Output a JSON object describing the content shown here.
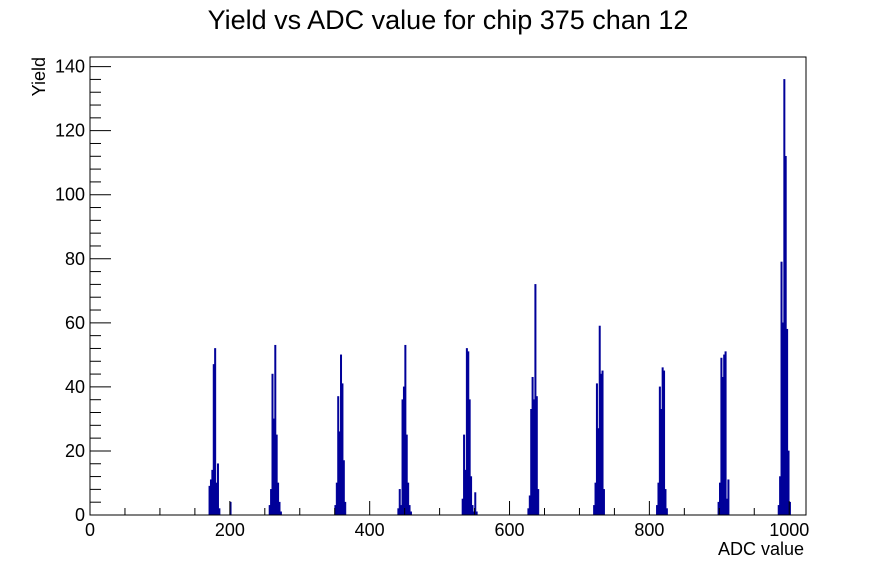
{
  "chart_data": {
    "type": "bar",
    "title": "Yield vs ADC value for chip 375 chan 12",
    "xlabel": "ADC value",
    "ylabel": "Yield",
    "xlim": [
      0,
      1024
    ],
    "ylim": [
      0,
      143
    ],
    "x_ticks": [
      0,
      200,
      400,
      600,
      800,
      1000
    ],
    "y_ticks": [
      0,
      20,
      40,
      60,
      80,
      100,
      120,
      140
    ],
    "bin_width": 2,
    "grid": false,
    "legend": "none",
    "colors": {
      "series": "#000099",
      "axes": "#000000",
      "background": "#ffffff"
    },
    "series": [
      {
        "x": [
          170,
          172,
          174,
          176,
          178,
          180,
          182,
          184,
          200,
          256,
          258,
          260,
          262,
          264,
          266,
          268,
          270,
          272,
          350,
          352,
          354,
          356,
          358,
          360,
          362,
          364,
          440,
          442,
          444,
          446,
          448,
          450,
          452,
          454,
          456,
          458,
          532,
          534,
          536,
          538,
          540,
          542,
          544,
          546,
          548,
          550,
          552,
          626,
          628,
          630,
          632,
          634,
          636,
          638,
          640,
          720,
          722,
          724,
          726,
          728,
          730,
          732,
          734,
          810,
          812,
          814,
          816,
          818,
          820,
          822,
          824,
          898,
          900,
          902,
          904,
          906,
          908,
          910,
          912,
          984,
          986,
          988,
          990,
          992,
          994,
          996,
          998,
          1000
        ],
        "values": [
          9,
          11,
          14,
          47,
          52,
          10,
          16,
          2,
          4,
          3,
          8,
          44,
          30,
          53,
          25,
          10,
          4,
          1,
          3,
          10,
          37,
          26,
          50,
          41,
          17,
          4,
          2,
          8,
          3,
          36,
          40,
          53,
          25,
          10,
          3,
          1,
          5,
          25,
          14,
          52,
          51,
          36,
          12,
          3,
          1,
          7,
          1,
          2,
          6,
          33,
          43,
          36,
          72,
          37,
          8,
          3,
          10,
          41,
          27,
          59,
          44,
          45,
          8,
          3,
          10,
          40,
          33,
          46,
          45,
          8,
          2,
          4,
          10,
          49,
          43,
          50,
          51,
          5,
          11,
          3,
          12,
          79,
          60,
          136,
          112,
          58,
          20,
          4
        ]
      }
    ]
  }
}
